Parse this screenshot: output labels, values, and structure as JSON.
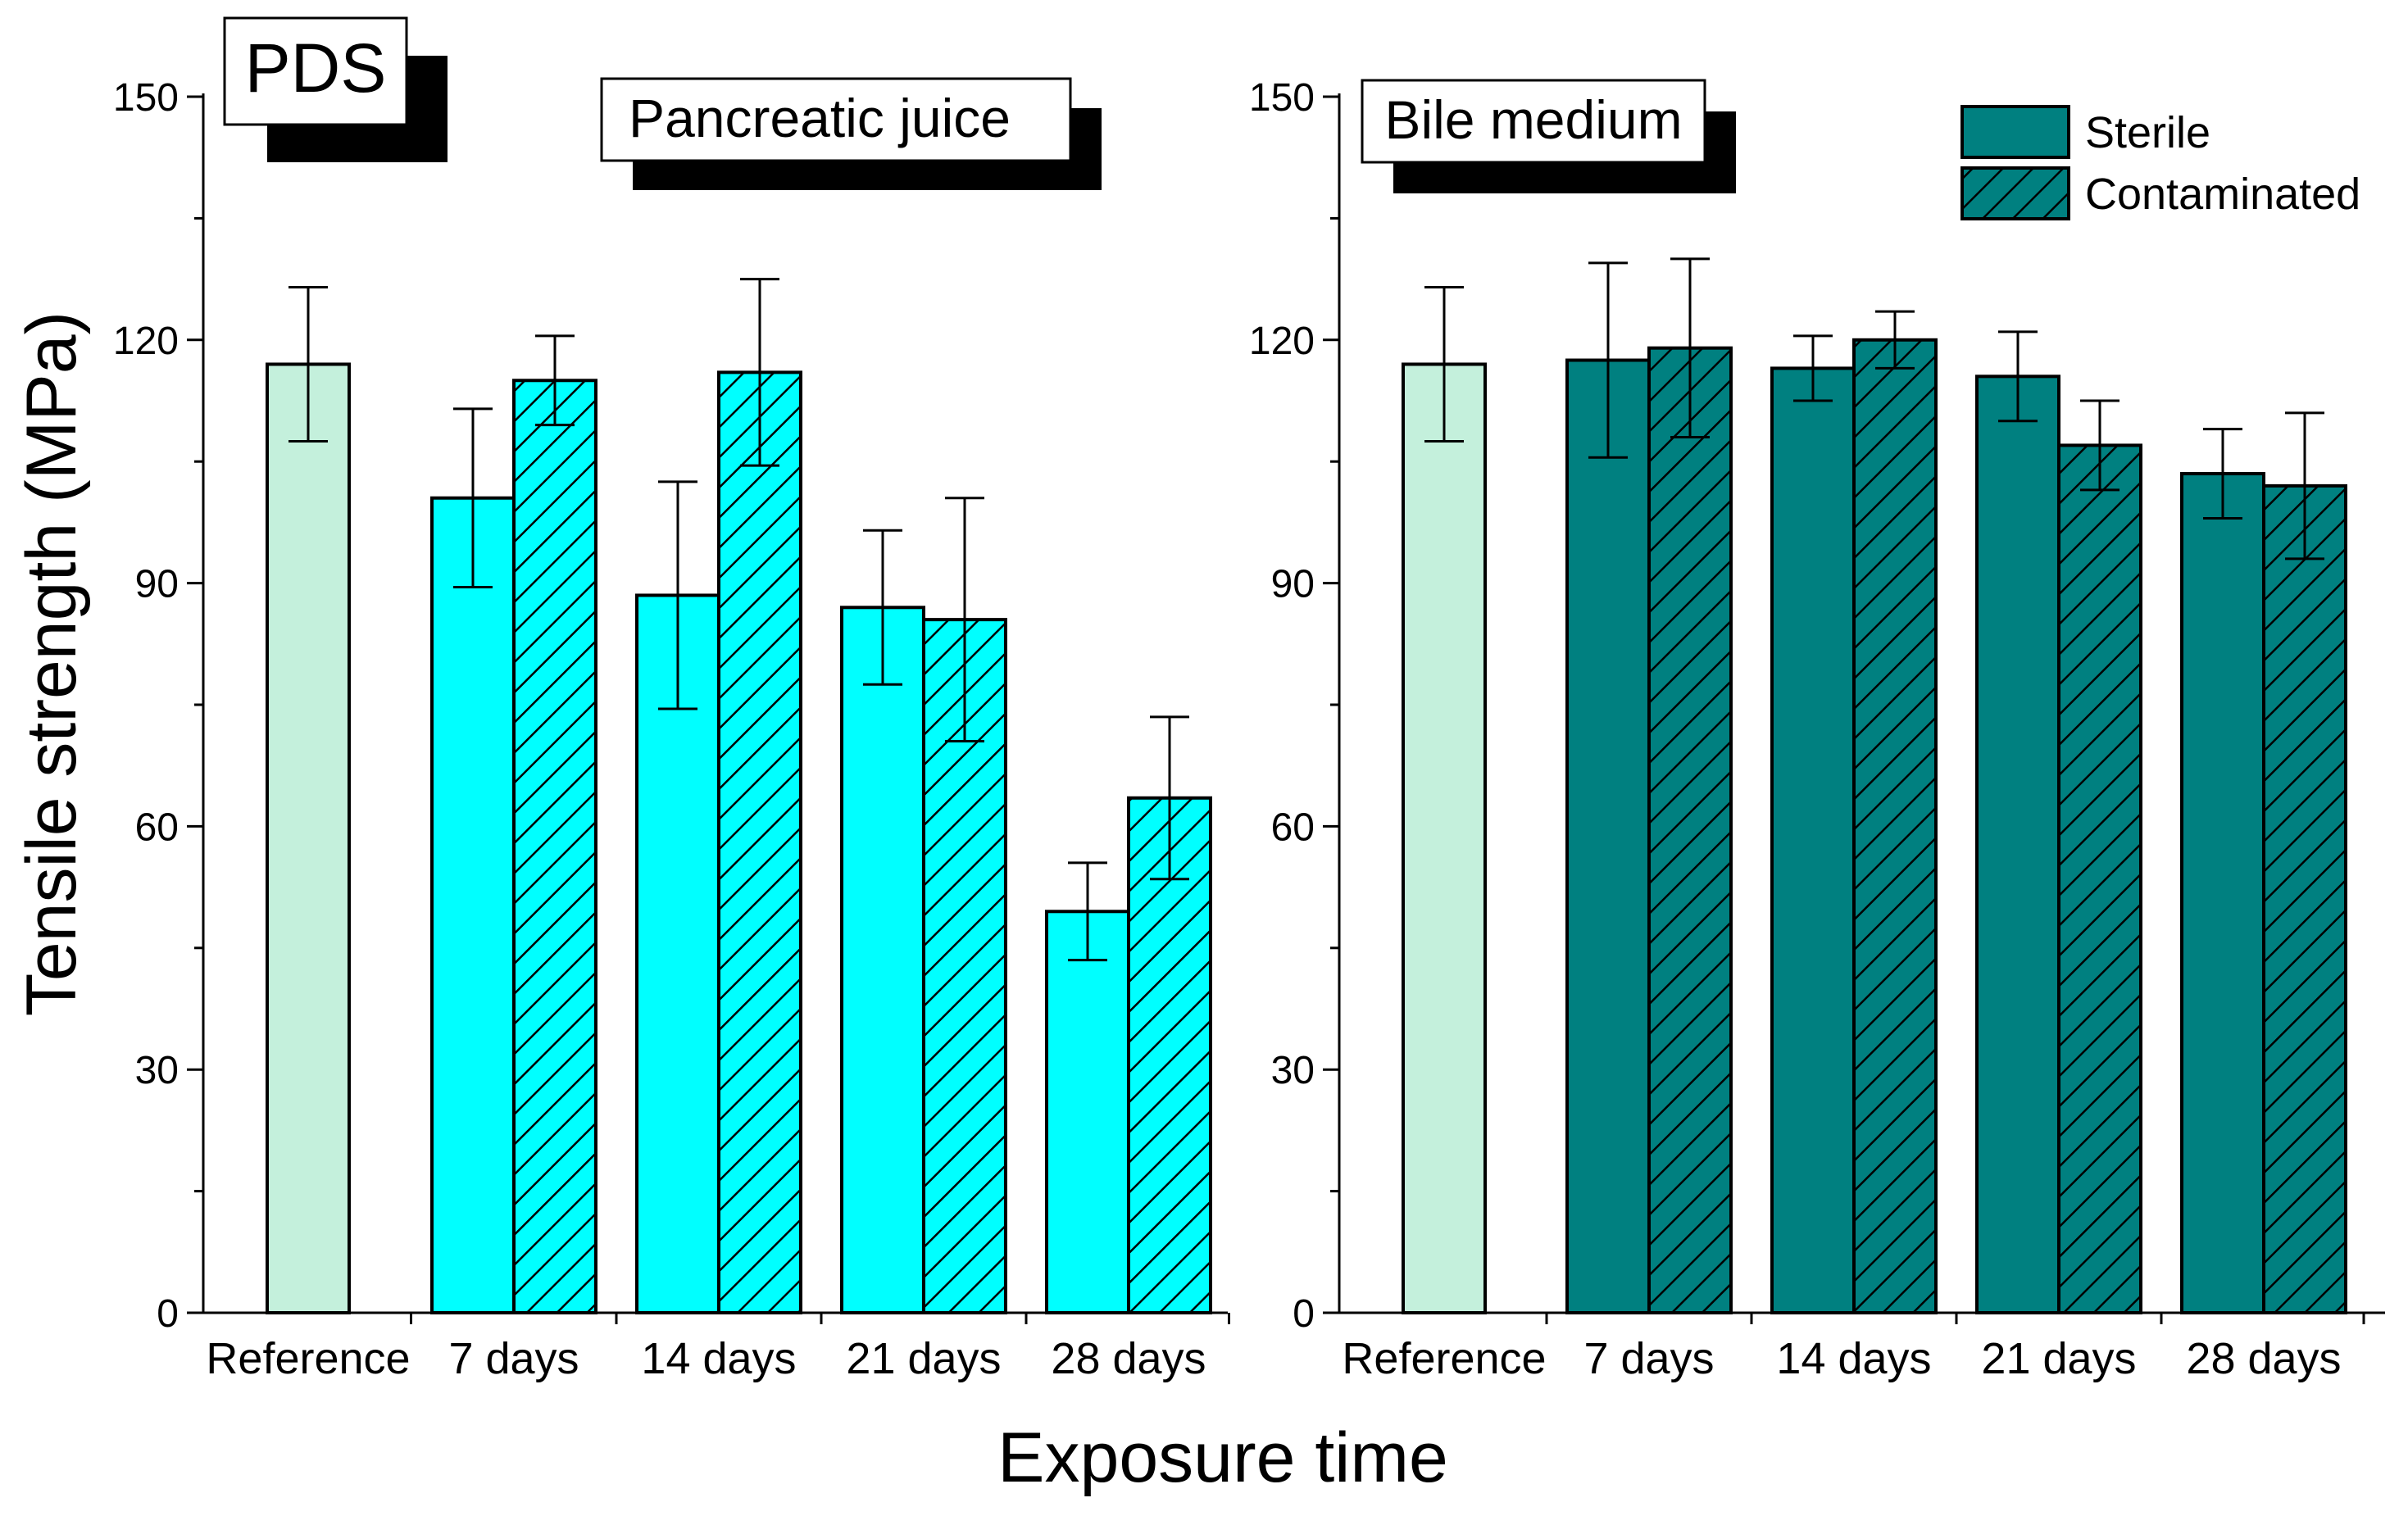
{
  "figure_label": "PDS",
  "axis": {
    "ylabel": "Tensile strength (MPa)",
    "xlabel": "Exposure time",
    "ylim": [
      0,
      150
    ],
    "yticks": [
      "0",
      "30",
      "60",
      "90",
      "120",
      "150"
    ]
  },
  "legend": {
    "sterile": "Sterile",
    "contaminated": "Contaminated"
  },
  "colors": {
    "reference": "#c4f0dc",
    "pancreatic": "#00ffff",
    "bile": "#008080",
    "edge": "#000000"
  },
  "chart_data": [
    {
      "type": "bar",
      "title": "Pancreatic juice",
      "categories": [
        "Reference",
        "7 days",
        "14 days",
        "21 days",
        "28 days"
      ],
      "ylabel": "Tensile strength (MPa)",
      "xlabel": "Exposure time",
      "ylim": [
        0,
        150
      ],
      "series": [
        {
          "name": "Reference",
          "values": [
            117,
            null,
            null,
            null,
            null
          ],
          "errors": [
            9.5,
            null,
            null,
            null,
            null
          ]
        },
        {
          "name": "Sterile",
          "values": [
            null,
            100.5,
            88.5,
            87,
            49.5
          ],
          "errors": [
            null,
            11,
            14,
            9.5,
            6
          ]
        },
        {
          "name": "Contaminated",
          "values": [
            null,
            115,
            116,
            85.5,
            63.5
          ],
          "errors": [
            null,
            5.5,
            11.5,
            15,
            10
          ]
        }
      ]
    },
    {
      "type": "bar",
      "title": "Bile medium",
      "categories": [
        "Reference",
        "7 days",
        "14 days",
        "21 days",
        "28 days"
      ],
      "ylabel": "Tensile strength (MPa)",
      "xlabel": "Exposure time",
      "ylim": [
        0,
        150
      ],
      "series": [
        {
          "name": "Reference",
          "values": [
            117,
            null,
            null,
            null,
            null
          ],
          "errors": [
            9.5,
            null,
            null,
            null,
            null
          ]
        },
        {
          "name": "Sterile",
          "values": [
            null,
            117.5,
            116.5,
            115.5,
            103.5
          ],
          "errors": [
            null,
            12,
            4,
            5.5,
            5.5
          ]
        },
        {
          "name": "Contaminated",
          "values": [
            null,
            119,
            120,
            107,
            102
          ],
          "errors": [
            null,
            11,
            3.5,
            5.5,
            9
          ]
        }
      ]
    }
  ]
}
